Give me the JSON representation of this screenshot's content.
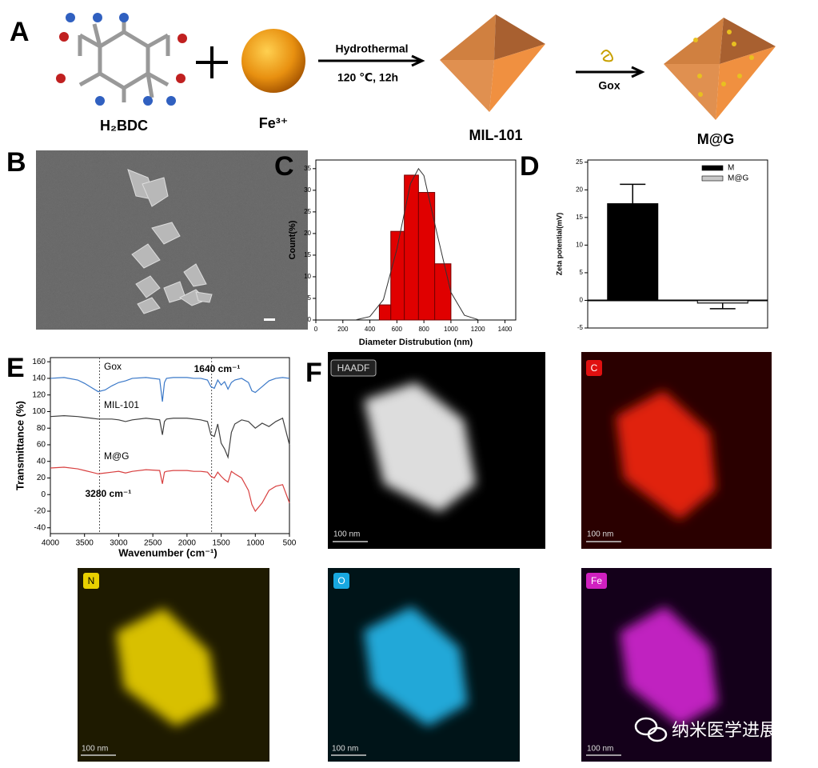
{
  "panel_labels": [
    "A",
    "B",
    "C",
    "D",
    "E",
    "F"
  ],
  "scheme": {
    "reactant_1": "H₂BDC",
    "reactant_2": "Fe³⁺",
    "step_1_top": "Hydrothermal",
    "step_1_bottom": "120 ℃, 12h",
    "product_1": "MIL-101",
    "step_2": "Gox",
    "product_2": "M@G"
  },
  "maps": [
    {
      "label": "HAADF",
      "scale": "100 nm"
    },
    {
      "label": "C",
      "scale": "100 nm"
    },
    {
      "label": "N",
      "scale": "100 nm"
    },
    {
      "label": "O",
      "scale": "100 nm"
    },
    {
      "label": "Fe",
      "scale": "100 nm"
    }
  ],
  "watermark": "纳米医学进展",
  "chart_data": [
    {
      "type": "histogram",
      "x_label": "Diameter Distrubution (nm)",
      "y_label": "Count(%)",
      "bins": [
        470,
        555,
        655,
        760,
        880,
        1000
      ],
      "values": [
        3.5,
        20.5,
        33.5,
        29.5,
        13
      ],
      "color": "#e00000",
      "fit": {
        "x": [
          300,
          400,
          500,
          600,
          700,
          760,
          800,
          900,
          1000,
          1100,
          1200
        ],
        "values": [
          0.07,
          0.8,
          4.7,
          16.4,
          31.5,
          35,
          33.4,
          19.6,
          6.4,
          1.1,
          0.1
        ]
      },
      "xlim": [
        0,
        1480
      ],
      "ylim": [
        0,
        37
      ],
      "xticks": [
        0,
        200,
        400,
        600,
        800,
        1000,
        1200,
        1400
      ],
      "yticks": [
        0,
        5,
        10,
        15,
        20,
        25,
        30,
        35
      ]
    },
    {
      "type": "bar",
      "y_label": "Zeta potential(mV)",
      "categories": [
        null,
        null
      ],
      "series": [
        {
          "name": "M",
          "color": "#000000",
          "values": [
            17.5,
            null
          ],
          "errors": [
            3.5,
            null
          ]
        },
        {
          "name": "M@G",
          "color": "#c8c8c8",
          "values": [
            null,
            -0.5
          ],
          "errors": [
            null,
            1
          ]
        }
      ],
      "ylim": [
        -5,
        25.4
      ],
      "yticks": [
        -5,
        0,
        5,
        10,
        15,
        20,
        25
      ],
      "legend": "upper-right"
    },
    {
      "type": "line",
      "x_label": "Wavenumber (cm⁻¹)",
      "y_label": "Transmittance (%)",
      "x": [
        4000,
        3800,
        3600,
        3500,
        3400,
        3300,
        3200,
        3100,
        3000,
        2900,
        2800,
        2600,
        2400,
        2360,
        2330,
        2300,
        2200,
        2100,
        2000,
        1900,
        1800,
        1700,
        1650,
        1600,
        1550,
        1500,
        1450,
        1400,
        1350,
        1300,
        1200,
        1100,
        1050,
        1000,
        900,
        800,
        700,
        600,
        500
      ],
      "series": [
        {
          "name": "Gox",
          "color": "#3a78c8",
          "values": [
            140,
            141,
            138,
            134,
            129,
            124,
            126,
            131,
            135,
            137,
            140,
            141,
            139,
            112,
            135,
            140,
            141,
            141,
            141,
            140,
            140,
            138,
            130,
            128,
            138,
            132,
            136,
            127,
            135,
            138,
            140,
            135,
            125,
            123,
            130,
            137,
            140,
            141,
            140
          ]
        },
        {
          "name": "MIL-101",
          "color": "#404040",
          "values": [
            94,
            95,
            94,
            93,
            92,
            91,
            91,
            91,
            90,
            88,
            90,
            92,
            90,
            72,
            88,
            91,
            92,
            92,
            92,
            91,
            90,
            88,
            72,
            70,
            85,
            62,
            55,
            45,
            75,
            85,
            90,
            88,
            84,
            80,
            86,
            82,
            88,
            92,
            60
          ]
        },
        {
          "name": "M@G",
          "color": "#d84040",
          "values": [
            32,
            33,
            31,
            29,
            27,
            25,
            26,
            27,
            28,
            26,
            28,
            30,
            29,
            13,
            27,
            28,
            29,
            29,
            29,
            28,
            28,
            27,
            22,
            20,
            27,
            22,
            18,
            15,
            28,
            25,
            20,
            5,
            -12,
            -20,
            -10,
            5,
            10,
            12,
            -10
          ]
        }
      ],
      "annotations": [
        {
          "text": "1640 cm⁻¹",
          "x": 1640
        },
        {
          "text": "3280 cm⁻¹",
          "x": 3280
        }
      ],
      "xlim": [
        4000,
        500
      ],
      "ylim": [
        -47,
        165
      ],
      "xticks": [
        4000,
        3500,
        3000,
        2500,
        2000,
        1500,
        1000,
        500
      ],
      "yticks": [
        -40,
        -20,
        0,
        20,
        40,
        60,
        80,
        100,
        120,
        140,
        160
      ]
    }
  ]
}
